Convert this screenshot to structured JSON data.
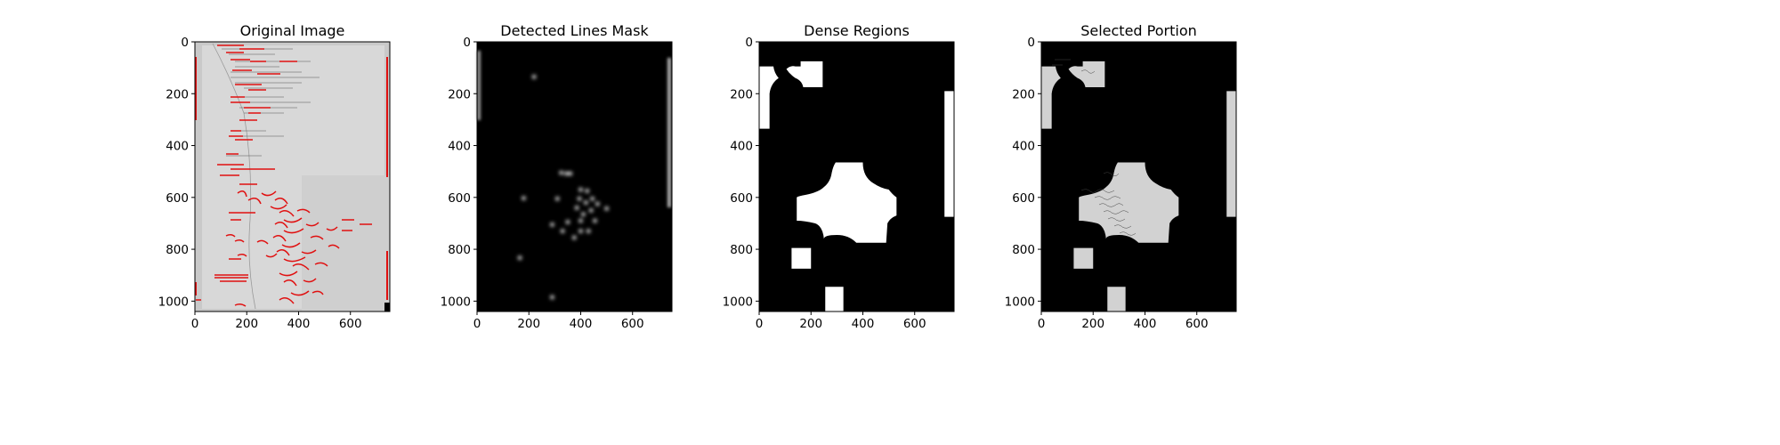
{
  "chart_data": [
    {
      "type": "image",
      "title": "Original Image",
      "image_content": "grayscale scan of a notebook page with printed code lines and handwriting; detected line segments overlaid in red",
      "xlim": [
        0,
        752
      ],
      "ylim": [
        1040,
        0
      ],
      "xticks": [
        0,
        200,
        400,
        600
      ],
      "yticks": [
        0,
        200,
        400,
        600,
        800,
        1000
      ]
    },
    {
      "type": "image",
      "title": "Detected Lines Mask",
      "image_content": "black background with a cluster of small blurred white dots near the center and thin white vertical strips at the left and right edges",
      "xlim": [
        0,
        752
      ],
      "ylim": [
        1040,
        0
      ],
      "xticks": [
        0,
        200,
        400,
        600
      ],
      "yticks": [
        0,
        200,
        400,
        600,
        800,
        1000
      ],
      "dots": [
        {
          "x": 220,
          "y": 135
        },
        {
          "x": 325,
          "y": 505
        },
        {
          "x": 345,
          "y": 508
        },
        {
          "x": 360,
          "y": 508
        },
        {
          "x": 400,
          "y": 570
        },
        {
          "x": 425,
          "y": 575
        },
        {
          "x": 395,
          "y": 605
        },
        {
          "x": 445,
          "y": 605
        },
        {
          "x": 420,
          "y": 620
        },
        {
          "x": 465,
          "y": 625
        },
        {
          "x": 310,
          "y": 605
        },
        {
          "x": 180,
          "y": 603
        },
        {
          "x": 385,
          "y": 640
        },
        {
          "x": 440,
          "y": 650
        },
        {
          "x": 500,
          "y": 643
        },
        {
          "x": 410,
          "y": 665
        },
        {
          "x": 350,
          "y": 695
        },
        {
          "x": 400,
          "y": 690
        },
        {
          "x": 455,
          "y": 690
        },
        {
          "x": 290,
          "y": 705
        },
        {
          "x": 330,
          "y": 730
        },
        {
          "x": 400,
          "y": 730
        },
        {
          "x": 430,
          "y": 730
        },
        {
          "x": 375,
          "y": 755
        },
        {
          "x": 165,
          "y": 833
        },
        {
          "x": 290,
          "y": 985
        }
      ]
    },
    {
      "type": "image",
      "title": "Dense Regions",
      "image_content": "binary mask: black background with white blob regions",
      "xlim": [
        0,
        752
      ],
      "ylim": [
        1040,
        0
      ],
      "xticks": [
        0,
        200,
        400,
        600
      ],
      "yticks": [
        0,
        200,
        400,
        600,
        800,
        1000
      ]
    },
    {
      "type": "image",
      "title": "Selected Portion",
      "image_content": "black background showing the original grayscale page only inside the dense regions",
      "xlim": [
        0,
        752
      ],
      "ylim": [
        1040,
        0
      ],
      "xticks": [
        0,
        200,
        400,
        600
      ],
      "yticks": [
        0,
        200,
        400,
        600,
        800,
        1000
      ]
    }
  ]
}
